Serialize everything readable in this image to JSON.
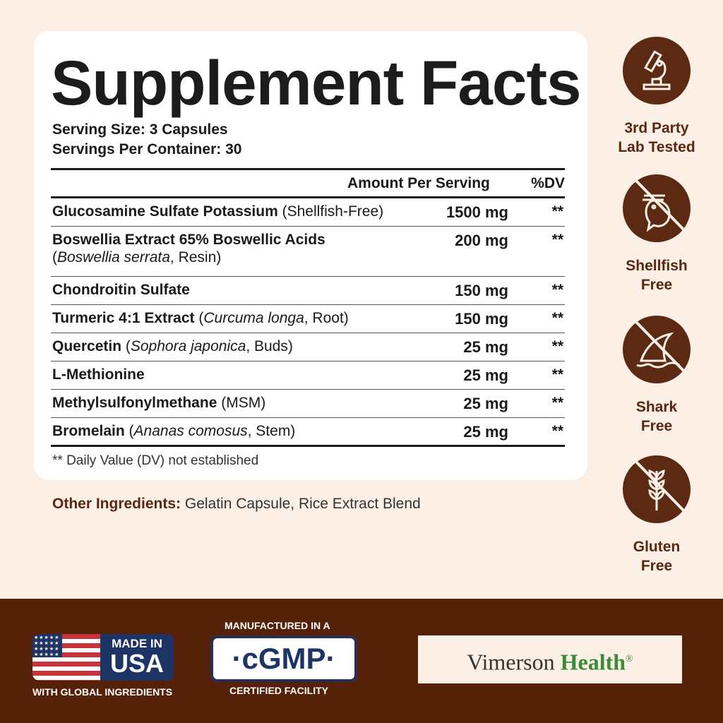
{
  "facts": {
    "title": "Supplement Facts",
    "serving_size": "Serving Size: 3 Capsules",
    "servings_per_container": "Servings Per Container: 30",
    "header_amount": "Amount Per Serving",
    "header_dv": "%DV",
    "rows": [
      {
        "name": "Glucosamine Sulfate Potassium",
        "note": " (Shellfish-Free)",
        "amount": "1500 mg",
        "dv": "**"
      },
      {
        "name": "Boswellia Extract 65% Boswellic Acids",
        "sub": "(Boswellia serrata, Resin)",
        "amount": "200 mg",
        "dv": "**"
      },
      {
        "name": "Chondroitin Sulfate",
        "note": "",
        "amount": "150 mg",
        "dv": "**"
      },
      {
        "name": "Turmeric 4:1 Extract",
        "note": " (Curcuma longa, Root)",
        "amount": "150 mg",
        "dv": "**"
      },
      {
        "name": "Quercetin",
        "note": " (Sophora japonica, Buds)",
        "amount": "25 mg",
        "dv": "**"
      },
      {
        "name": "L-Methionine",
        "note": "",
        "amount": "25 mg",
        "dv": "**"
      },
      {
        "name": "Methylsulfonylmethane",
        "note": " (MSM)",
        "amount": "25 mg",
        "dv": "**"
      },
      {
        "name": "Bromelain",
        "note": " (Ananas comosus, Stem)",
        "amount": "25 mg",
        "dv": "**"
      }
    ],
    "footnote": "** Daily Value (DV) not established"
  },
  "other_ingredients": {
    "label": "Other Ingredients:",
    "value": " Gelatin Capsule, Rice Extract Blend"
  },
  "badges": [
    {
      "icon": "microscope-icon",
      "line1": "3rd Party",
      "line2": "Lab Tested"
    },
    {
      "icon": "shrimp-crossed-icon",
      "line1": "Shellfish",
      "line2": "Free"
    },
    {
      "icon": "shark-fin-crossed-icon",
      "line1": "Shark",
      "line2": "Free"
    },
    {
      "icon": "wheat-crossed-icon",
      "line1": "Gluten",
      "line2": "Free"
    }
  ],
  "footer": {
    "usa_top": "MADE IN",
    "usa_big": "USA",
    "usa_bottom": "WITH GLOBAL INGREDIENTS",
    "cgmp_top": "MANUFACTURED IN A",
    "cgmp": "·cGMP·",
    "cgmp_bottom": "CERTIFIED FACILITY",
    "brand_a": "Vimerson",
    "brand_b": "Health",
    "brand_reg": "®"
  },
  "colors": {
    "background": "#fbefe6",
    "brown": "#5c2912",
    "band": "#552209",
    "brand_green": "#3a8a3a",
    "usa_blue": "#1f3466"
  }
}
